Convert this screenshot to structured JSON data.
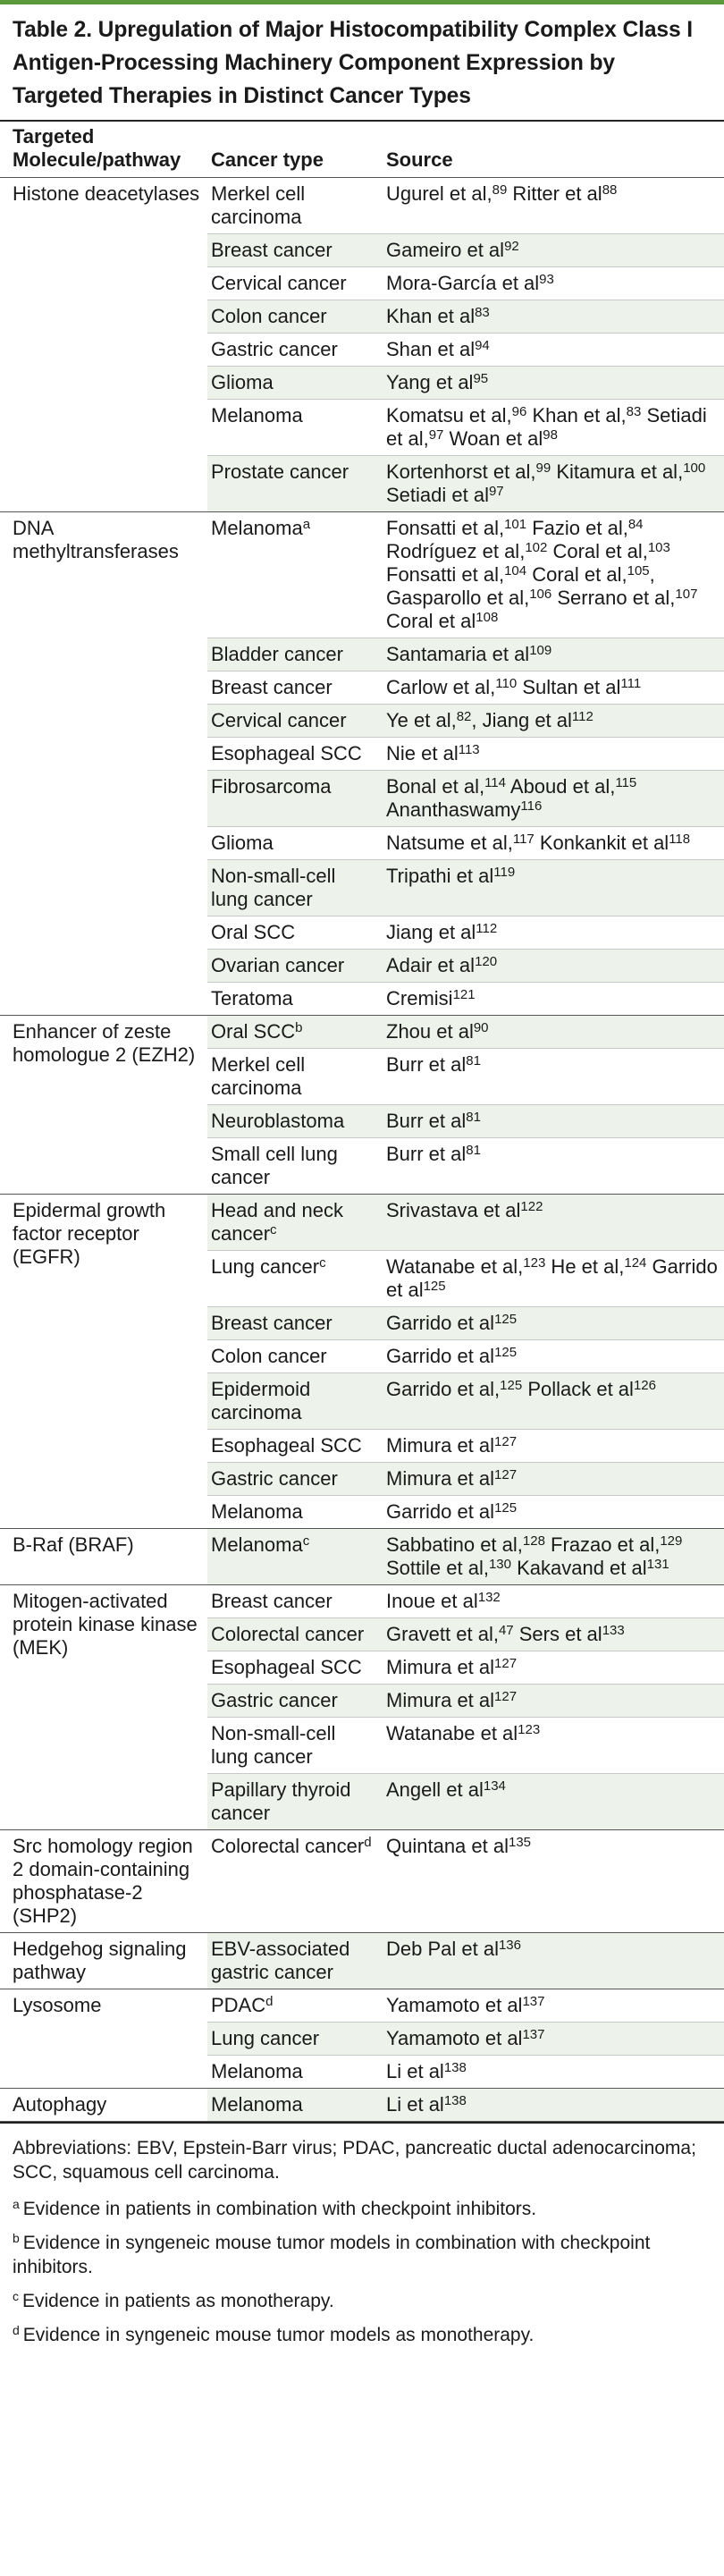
{
  "title": "Table 2. Upregulation of Major Histocompatibility Complex Class I Antigen-Processing Machinery Component Expression by Targeted Therapies in Distinct Cancer Types",
  "colors": {
    "accent_bar": "#5b9a3c",
    "stripe": "#edf3ea"
  },
  "headers": {
    "molecule": "Targeted Molecule/pathway",
    "cancer": "Cancer type",
    "source": "Source"
  },
  "groups": [
    {
      "molecule": "Histone deacetylases",
      "rows": [
        {
          "cancer": "Merkel cell carcinoma",
          "source": [
            [
              "Ugurel et al,",
              "89"
            ],
            [
              " Ritter et al",
              "88"
            ]
          ]
        },
        {
          "cancer": "Breast cancer",
          "source": [
            [
              "Gameiro et al",
              "92"
            ]
          ]
        },
        {
          "cancer": "Cervical cancer",
          "source": [
            [
              "Mora-García et al",
              "93"
            ]
          ]
        },
        {
          "cancer": "Colon cancer",
          "source": [
            [
              "Khan et al",
              "83"
            ]
          ]
        },
        {
          "cancer": "Gastric cancer",
          "source": [
            [
              "Shan et al",
              "94"
            ]
          ]
        },
        {
          "cancer": "Glioma",
          "source": [
            [
              "Yang et al",
              "95"
            ]
          ]
        },
        {
          "cancer": "Melanoma",
          "source": [
            [
              "Komatsu et al,",
              "96"
            ],
            [
              " Khan et al,",
              "83"
            ],
            [
              " Setiadi et al,",
              "97"
            ],
            [
              " Woan et al",
              "98"
            ]
          ]
        },
        {
          "cancer": "Prostate cancer",
          "source": [
            [
              "Kortenhorst et al,",
              "99"
            ],
            [
              " Kitamura et al,",
              "100"
            ],
            [
              " Setiadi et al",
              "97"
            ]
          ]
        }
      ]
    },
    {
      "molecule": "DNA methyltransferases",
      "rows": [
        {
          "cancer": "Melanoma",
          "cancer_sup": "a",
          "source": [
            [
              "Fonsatti et al,",
              "101"
            ],
            [
              " Fazio et al,",
              "84"
            ],
            [
              " Rodríguez et al,",
              "102"
            ],
            [
              " Coral et al,",
              "103"
            ],
            [
              " Fonsatti et al,",
              "104"
            ],
            [
              " Coral et al,",
              "105"
            ],
            [
              ", Gasparollo et al,",
              "106"
            ],
            [
              " Serrano et al,",
              "107"
            ],
            [
              " Coral et al",
              "108"
            ]
          ]
        },
        {
          "cancer": "Bladder cancer",
          "source": [
            [
              "Santamaria et al",
              "109"
            ]
          ]
        },
        {
          "cancer": "Breast cancer",
          "source": [
            [
              "Carlow et al,",
              "110"
            ],
            [
              " Sultan et al",
              "111"
            ]
          ]
        },
        {
          "cancer": "Cervical cancer",
          "source": [
            [
              "Ye et al,",
              "82"
            ],
            [
              ", Jiang et al",
              "112"
            ]
          ]
        },
        {
          "cancer": "Esophageal SCC",
          "source": [
            [
              "Nie et al",
              "113"
            ]
          ]
        },
        {
          "cancer": "Fibrosarcoma",
          "source": [
            [
              "Bonal et al,",
              "114"
            ],
            [
              " Aboud et al,",
              "115"
            ],
            [
              " Ananthaswamy",
              "116"
            ]
          ]
        },
        {
          "cancer": "Glioma",
          "source": [
            [
              "Natsume et al,",
              "117"
            ],
            [
              " Konkankit et al",
              "118"
            ]
          ]
        },
        {
          "cancer": "Non-small-cell lung cancer",
          "source": [
            [
              "Tripathi et al",
              "119"
            ]
          ]
        },
        {
          "cancer": "Oral SCC",
          "source": [
            [
              "Jiang et al",
              "112"
            ]
          ]
        },
        {
          "cancer": "Ovarian cancer",
          "source": [
            [
              "Adair et al",
              "120"
            ]
          ]
        },
        {
          "cancer": "Teratoma",
          "source": [
            [
              "Cremisi",
              "121"
            ]
          ]
        }
      ]
    },
    {
      "molecule": "Enhancer of zeste homologue 2 (EZH2)",
      "rows": [
        {
          "cancer": "Oral SCC",
          "cancer_sup": "b",
          "source": [
            [
              "Zhou et al",
              "90"
            ]
          ]
        },
        {
          "cancer": "Merkel cell carcinoma",
          "source": [
            [
              "Burr et al",
              "81"
            ]
          ]
        },
        {
          "cancer": "Neuroblastoma",
          "source": [
            [
              "Burr et al",
              "81"
            ]
          ]
        },
        {
          "cancer": "Small cell lung cancer",
          "source": [
            [
              "Burr et al",
              "81"
            ]
          ]
        }
      ]
    },
    {
      "molecule": "Epidermal growth factor receptor (EGFR)",
      "rows": [
        {
          "cancer": "Head and neck cancer",
          "cancer_sup": "c",
          "source": [
            [
              "Srivastava et al",
              "122"
            ]
          ]
        },
        {
          "cancer": "Lung cancer",
          "cancer_sup": "c",
          "source": [
            [
              "Watanabe et al,",
              "123"
            ],
            [
              " He et al,",
              "124"
            ],
            [
              " Garrido et al",
              "125"
            ]
          ]
        },
        {
          "cancer": "Breast cancer",
          "source": [
            [
              "Garrido et al",
              "125"
            ]
          ]
        },
        {
          "cancer": "Colon cancer",
          "source": [
            [
              "Garrido et al",
              "125"
            ]
          ]
        },
        {
          "cancer": "Epidermoid carcinoma",
          "source": [
            [
              "Garrido et al,",
              "125"
            ],
            [
              " Pollack et al",
              "126"
            ]
          ]
        },
        {
          "cancer": "Esophageal SCC",
          "source": [
            [
              "Mimura et al",
              "127"
            ]
          ]
        },
        {
          "cancer": "Gastric cancer",
          "source": [
            [
              "Mimura et al",
              "127"
            ]
          ]
        },
        {
          "cancer": "Melanoma",
          "source": [
            [
              "Garrido et al",
              "125"
            ]
          ]
        }
      ]
    },
    {
      "molecule": "B-Raf (BRAF)",
      "rows": [
        {
          "cancer": "Melanoma",
          "cancer_sup": "c",
          "source": [
            [
              "Sabbatino et al,",
              "128"
            ],
            [
              " Frazao et al,",
              "129"
            ],
            [
              " Sottile et al,",
              "130"
            ],
            [
              " Kakavand et al",
              "131"
            ]
          ]
        }
      ]
    },
    {
      "molecule": "Mitogen-activated protein kinase kinase (MEK)",
      "rows": [
        {
          "cancer": "Breast cancer",
          "source": [
            [
              "Inoue et al",
              "132"
            ]
          ]
        },
        {
          "cancer": "Colorectal cancer",
          "source": [
            [
              "Gravett et al,",
              "47"
            ],
            [
              " Sers et al",
              "133"
            ]
          ]
        },
        {
          "cancer": "Esophageal SCC",
          "source": [
            [
              "Mimura et al",
              "127"
            ]
          ]
        },
        {
          "cancer": "Gastric cancer",
          "source": [
            [
              "Mimura et al",
              "127"
            ]
          ]
        },
        {
          "cancer": "Non-small-cell lung cancer",
          "source": [
            [
              "Watanabe et al",
              "123"
            ]
          ]
        },
        {
          "cancer": "Papillary thyroid cancer",
          "source": [
            [
              "Angell et al",
              "134"
            ]
          ]
        }
      ]
    },
    {
      "molecule": "Src homology region 2 domain-containing phosphatase-2 (SHP2)",
      "rows": [
        {
          "cancer": "Colorectal cancer",
          "cancer_sup": "d",
          "source": [
            [
              "Quintana et al",
              "135"
            ]
          ]
        }
      ]
    },
    {
      "molecule": "Hedgehog signaling pathway",
      "rows": [
        {
          "cancer": "EBV-associated gastric cancer",
          "source": [
            [
              "Deb Pal et al",
              "136"
            ]
          ]
        }
      ]
    },
    {
      "molecule": "Lysosome",
      "rows": [
        {
          "cancer": "PDAC",
          "cancer_sup": "d",
          "source": [
            [
              "Yamamoto et al",
              "137"
            ]
          ]
        },
        {
          "cancer": "Lung cancer",
          "source": [
            [
              "Yamamoto et al",
              "137"
            ]
          ]
        },
        {
          "cancer": "Melanoma",
          "source": [
            [
              "Li et al",
              "138"
            ]
          ]
        }
      ]
    },
    {
      "molecule": "Autophagy",
      "rows": [
        {
          "cancer": "Melanoma",
          "source": [
            [
              "Li et al",
              "138"
            ]
          ]
        }
      ]
    }
  ],
  "abbreviations": "Abbreviations: EBV, Epstein-Barr virus; PDAC, pancreatic ductal adenocarcinoma; SCC, squamous cell carcinoma.",
  "footnotes": [
    {
      "mark": "a",
      "text": "Evidence in patients in combination with checkpoint inhibitors."
    },
    {
      "mark": "b",
      "text": "Evidence in syngeneic mouse tumor models in combination with checkpoint inhibitors."
    },
    {
      "mark": "c",
      "text": "Evidence in patients as monotherapy."
    },
    {
      "mark": "d",
      "text": "Evidence in syngeneic mouse tumor models as monotherapy."
    }
  ]
}
